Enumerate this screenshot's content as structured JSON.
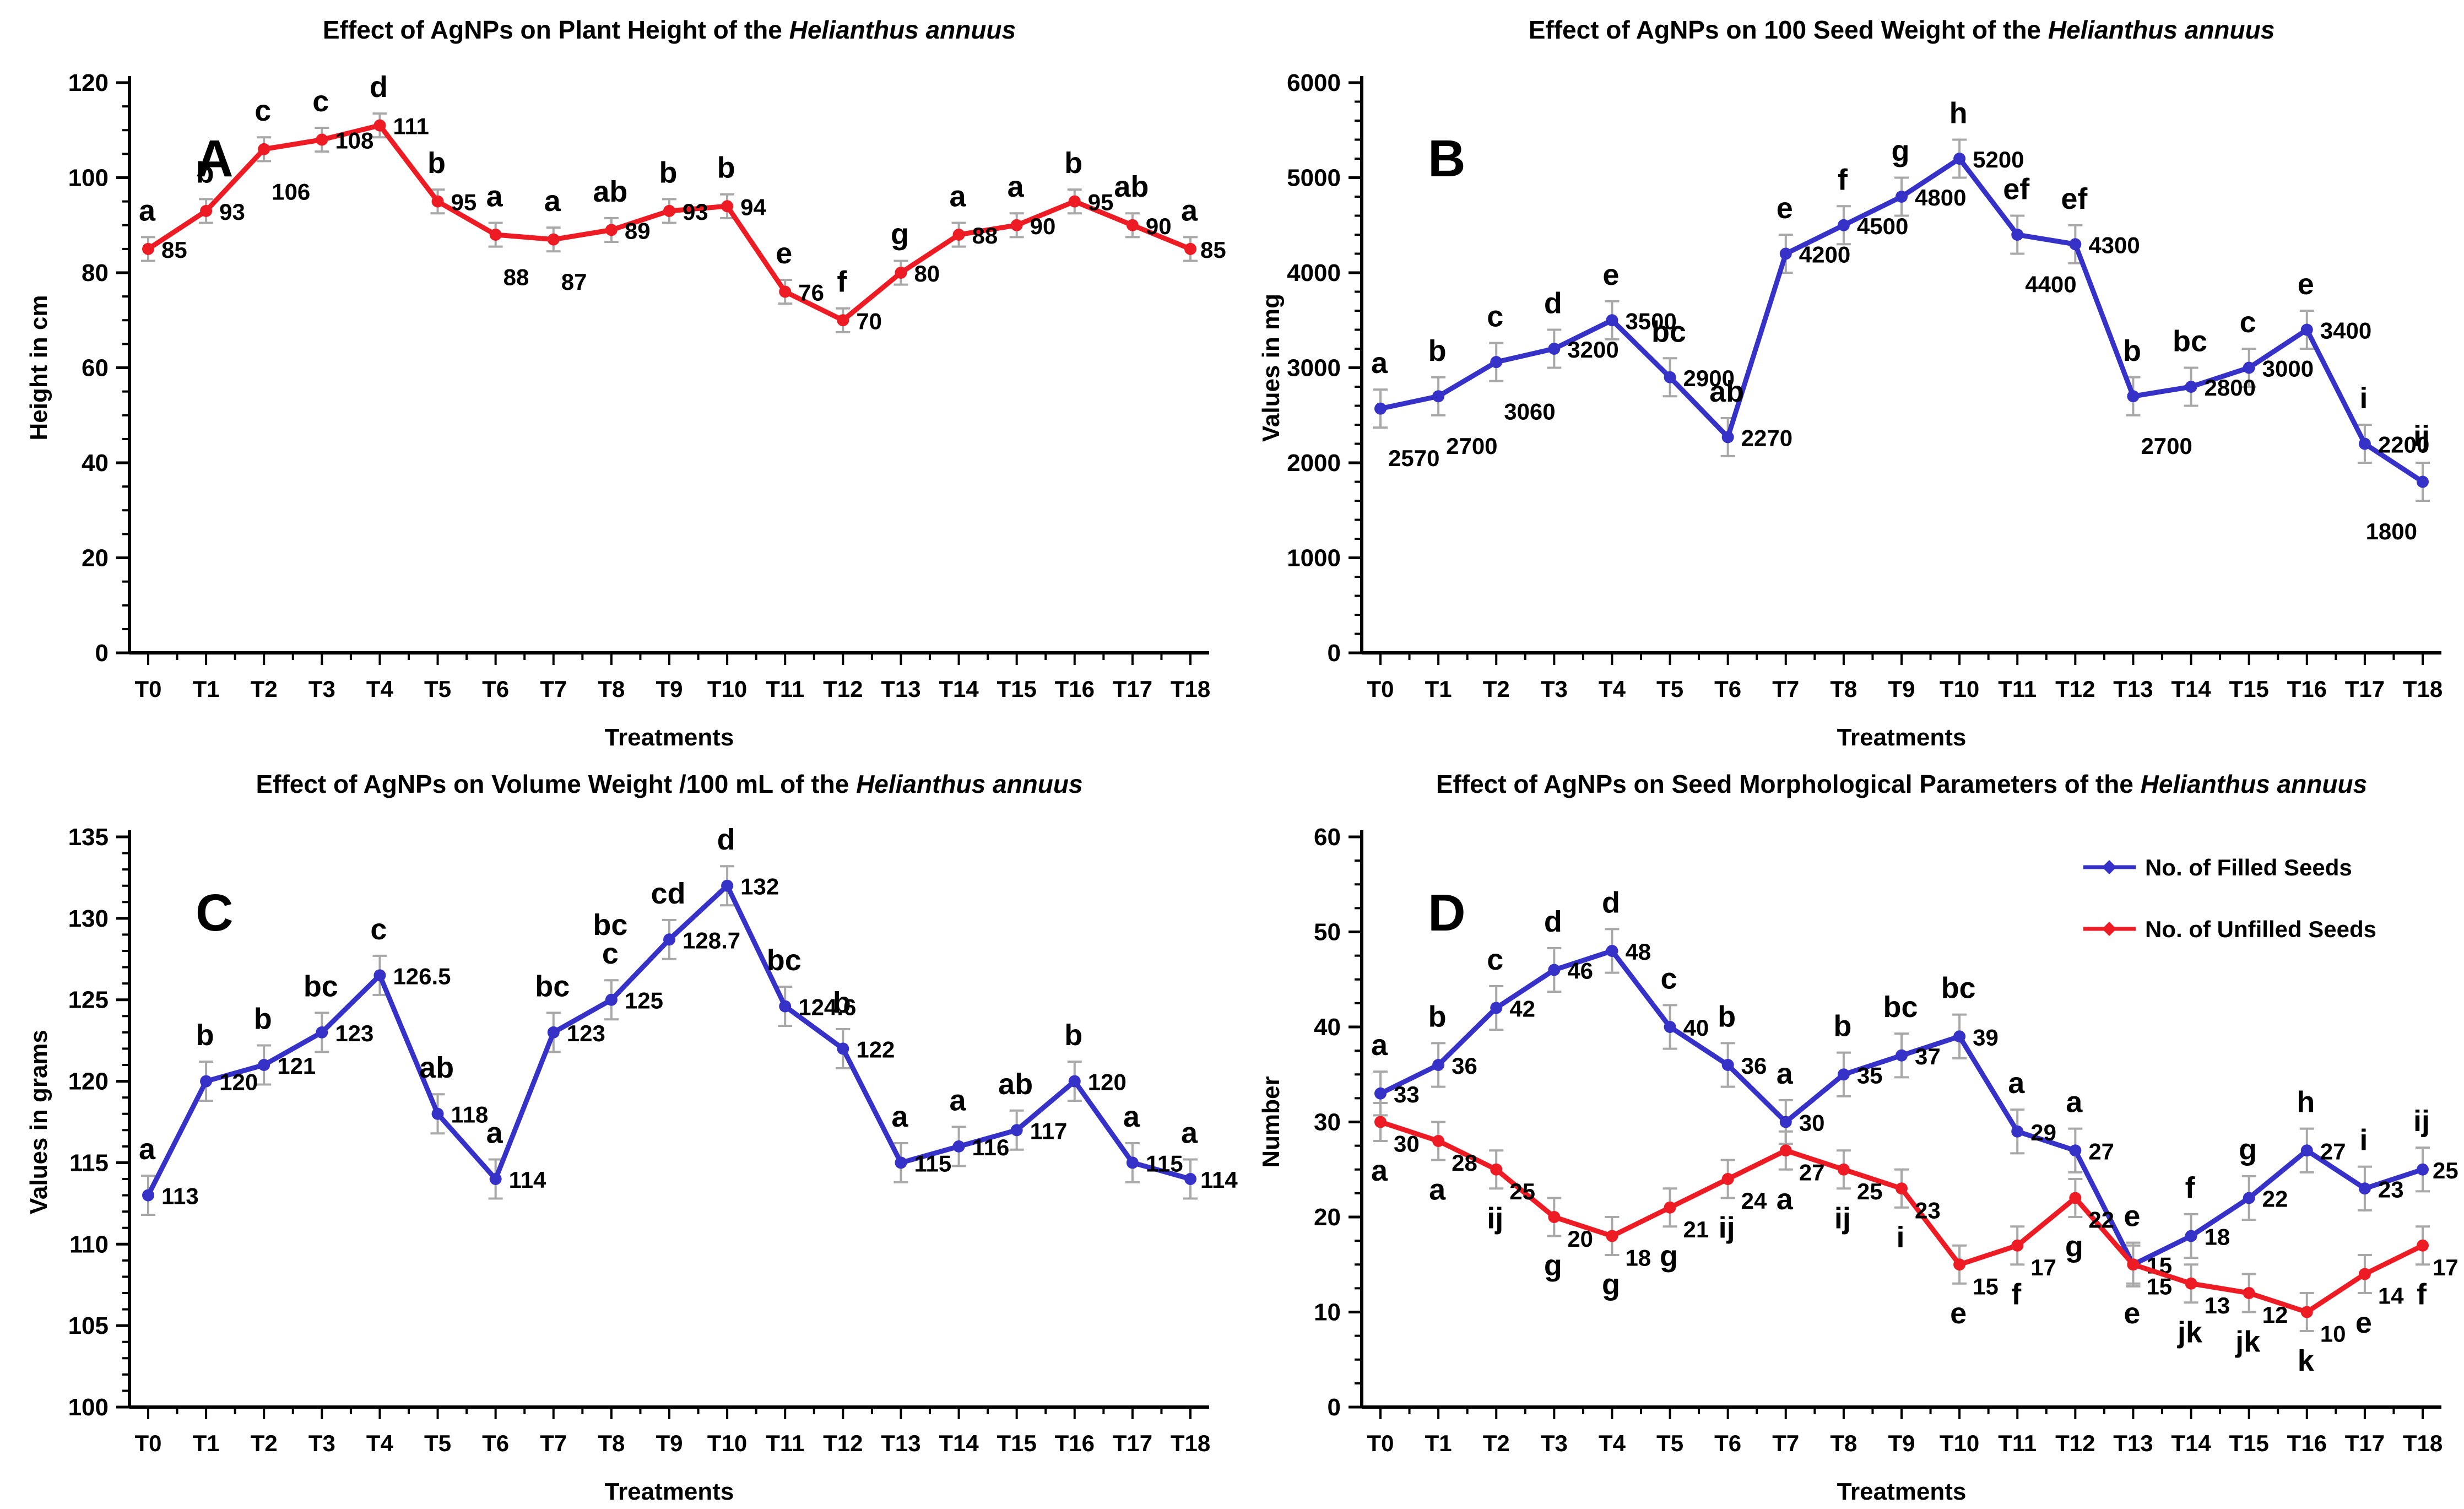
{
  "figure": {
    "background": "#ffffff",
    "species_italic": "Helianthus annuus",
    "treatments_axis_label": "Treatments",
    "error_bar_color": "#a8a8a8",
    "axis_color": "#000000",
    "red": "#ed1c24",
    "blue": "#3632c8"
  },
  "chart_data": [
    {
      "panel": "A",
      "type": "line",
      "title_plain": "Effect of AgNPs on Plant Height of the ",
      "title_italic": "Helianthus annuus",
      "xlabel": "Treatments",
      "ylabel": "Height in cm",
      "ylim": [
        0,
        120
      ],
      "yticks": [
        0,
        20,
        40,
        60,
        80,
        100,
        120
      ],
      "y_minor_intervals": 4,
      "grid": false,
      "legend": null,
      "categories": [
        "T0",
        "T1",
        "T2",
        "T3",
        "T4",
        "T5",
        "T6",
        "T7",
        "T8",
        "T9",
        "T10",
        "T11",
        "T12",
        "T13",
        "T14",
        "T15",
        "T16",
        "T17",
        "T18"
      ],
      "series": [
        {
          "name": "Plant Height",
          "color": "#ed1c24",
          "values": [
            85,
            93,
            106,
            108,
            111,
            95,
            88,
            87,
            89,
            93,
            94,
            76,
            70,
            80,
            88,
            90,
            95,
            90,
            85
          ],
          "letters": [
            "a",
            "b",
            "c",
            "c",
            "d",
            "b",
            "a",
            "a",
            "ab",
            "b",
            "b",
            "e",
            "f",
            "g",
            "a",
            "a",
            "b",
            "ab",
            "a"
          ],
          "letter_position": "above",
          "error": 2.5,
          "value_below_indices": [
            2,
            6,
            7
          ],
          "value_dy": 16
        }
      ]
    },
    {
      "panel": "B",
      "type": "line",
      "title_plain": "Effect of AgNPs on 100 Seed Weight of the ",
      "title_italic": "Helianthus annuus",
      "xlabel": "Treatments",
      "ylabel": "Values in mg",
      "ylim": [
        0,
        6000
      ],
      "yticks": [
        0,
        1000,
        2000,
        3000,
        4000,
        5000,
        6000
      ],
      "y_minor_intervals": 5,
      "grid": false,
      "legend": null,
      "categories": [
        "T0",
        "T1",
        "T2",
        "T3",
        "T4",
        "T5",
        "T6",
        "T7",
        "T8",
        "T9",
        "T10",
        "T11",
        "T12",
        "T13",
        "T14",
        "T15",
        "T16",
        "T17",
        "T18"
      ],
      "series": [
        {
          "name": "100 Seed Weight",
          "color": "#3632c8",
          "values": [
            2570,
            2700,
            3060,
            3200,
            3500,
            2900,
            2270,
            4200,
            4500,
            4800,
            5200,
            4400,
            4300,
            2700,
            2800,
            3000,
            3400,
            2200,
            1800
          ],
          "letters": [
            "a",
            "b",
            "c",
            "d",
            "e",
            "bc",
            "ab",
            "e",
            "f",
            "g",
            "h",
            "ef",
            "ef",
            "b",
            "bc",
            "c",
            "e",
            "i",
            "ij"
          ],
          "letter_position": "above",
          "error": 200,
          "value_below_indices": [
            0,
            1,
            2,
            11,
            13,
            18
          ],
          "value_dy": 16
        }
      ]
    },
    {
      "panel": "C",
      "type": "line",
      "title_plain": "Effect of AgNPs on Volume Weight /100 mL of the ",
      "title_italic": "Helianthus annuus",
      "xlabel": "Treatments",
      "ylabel": "Values in grams",
      "ylim": [
        100,
        135
      ],
      "yticks": [
        100,
        105,
        110,
        115,
        120,
        125,
        130,
        135
      ],
      "y_minor_intervals": 5,
      "grid": false,
      "legend": null,
      "categories": [
        "T0",
        "T1",
        "T2",
        "T3",
        "T4",
        "T5",
        "T6",
        "T7",
        "T8",
        "T9",
        "T10",
        "T11",
        "T12",
        "T13",
        "T14",
        "T15",
        "T16",
        "T17",
        "T18"
      ],
      "series": [
        {
          "name": "Volume Weight /100 mL",
          "color": "#3632c8",
          "values": [
            113,
            120,
            121,
            123,
            126.5,
            118,
            114,
            123,
            125,
            128.7,
            132,
            124.6,
            122,
            115,
            116,
            117,
            120,
            115,
            114
          ],
          "letters": [
            "a",
            "b",
            "b",
            "bc",
            "c",
            "ab",
            "a",
            "bc",
            "bc\nc",
            "cd",
            "d",
            "bc",
            "b",
            "a",
            "a",
            "ab",
            "b",
            "a",
            "a"
          ],
          "letter_position": "above",
          "error": 1.2,
          "value_below_indices": [],
          "value_dy": 16
        }
      ]
    },
    {
      "panel": "D",
      "type": "line",
      "title_plain": "Effect of AgNPs on Seed Morphological Parameters of the ",
      "title_italic": "Helianthus annuus",
      "xlabel": "Treatments",
      "ylabel": "Number",
      "ylim": [
        0,
        60
      ],
      "yticks": [
        0,
        10,
        20,
        30,
        40,
        50,
        60
      ],
      "y_minor_intervals": 4,
      "grid": false,
      "legend": {
        "position": "top-right",
        "items": [
          {
            "label": "No. of Filled Seeds",
            "color": "#3632c8"
          },
          {
            "label": "No. of Unfilled Seeds",
            "color": "#ed1c24"
          }
        ]
      },
      "categories": [
        "T0",
        "T1",
        "T2",
        "T3",
        "T4",
        "T5",
        "T6",
        "T7",
        "T8",
        "T9",
        "T10",
        "T11",
        "T12",
        "T13",
        "T14",
        "T15",
        "T16",
        "T17",
        "T18"
      ],
      "series": [
        {
          "name": "No. of Filled Seeds",
          "color": "#3632c8",
          "values": [
            33,
            36,
            42,
            46,
            48,
            40,
            36,
            30,
            35,
            37,
            39,
            29,
            27,
            15,
            18,
            22,
            27,
            23,
            25
          ],
          "letters": [
            "a",
            "b",
            "c",
            "d",
            "d",
            "c",
            "b",
            "a",
            "b",
            "bc",
            "bc",
            "a",
            "a",
            "e",
            "f",
            "g",
            "h",
            "i",
            "ij"
          ],
          "letter_position": "above",
          "error": 2.3,
          "value_below_indices": [],
          "value_dy": 16
        },
        {
          "name": "No. of Unfilled Seeds",
          "color": "#ed1c24",
          "values": [
            30,
            28,
            25,
            20,
            18,
            21,
            24,
            27,
            25,
            23,
            15,
            17,
            22,
            15,
            13,
            12,
            10,
            14,
            17
          ],
          "letters": [
            "a",
            "a",
            "ij",
            "g",
            "g",
            "g",
            "ij",
            "a",
            "ij",
            "i",
            "e",
            "f",
            "g",
            "e",
            "jk",
            "jk",
            "k",
            "e",
            "f"
          ],
          "letter_position": "below",
          "error": 2.0,
          "value_below_indices": [],
          "value_dy": 54
        }
      ]
    }
  ]
}
